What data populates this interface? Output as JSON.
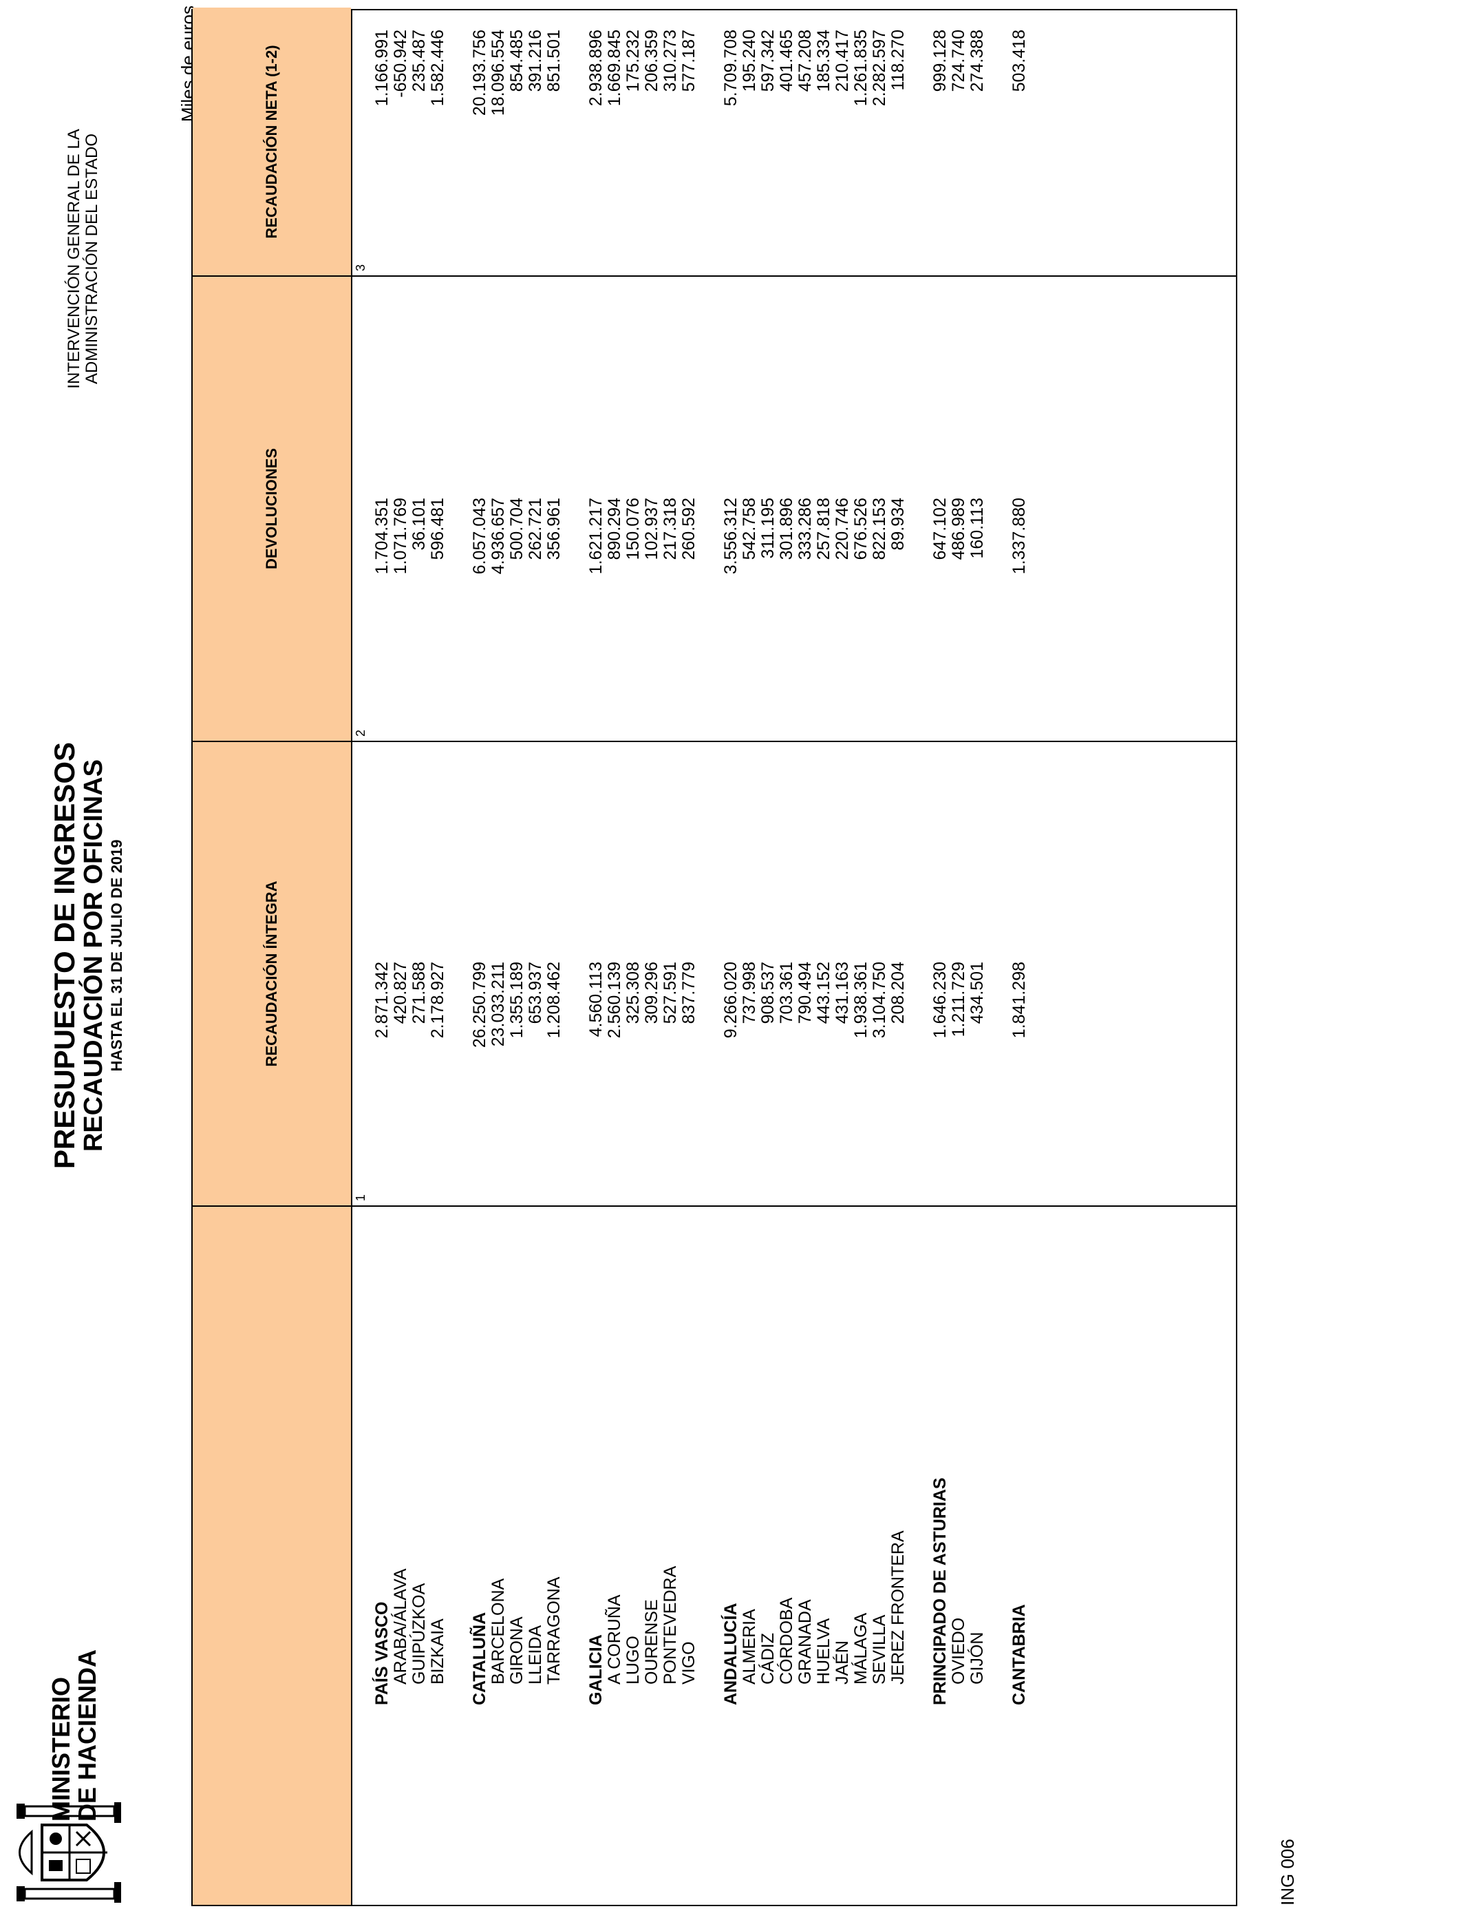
{
  "header": {
    "ministry_line1": "MINISTERIO",
    "ministry_line2": "DE HACIENDA",
    "title": "PRESUPUESTO DE INGRESOS",
    "subtitle": "RECAUDACIÓN POR OFICINAS",
    "date_line": "HASTA EL 31 DE JULIO DE 2019",
    "igae_line1": "INTERVENCIÓN GENERAL DE LA",
    "igae_line2": "ADMINISTRACIÓN DEL ESTADO",
    "units": "Miles de euros"
  },
  "columns": {
    "c0": "",
    "c1": "RECAUDACIÓN ÍNTEGRA",
    "c2": "DEVOLUCIONES",
    "c3": "RECAUDACIÓN NETA (1-2)",
    "n1": "1",
    "n2": "2",
    "n3": "3"
  },
  "rows": [
    {
      "name": "PAÍS VASCO",
      "group": true,
      "v1": "2.871.342",
      "v2": "1.704.351",
      "v3": "1.166.991"
    },
    {
      "name": "ARABA/ÁLAVA",
      "v1": "420.827",
      "v2": "1.071.769",
      "v3": "-650.942"
    },
    {
      "name": "GUIPÚZKOA",
      "v1": "271.588",
      "v2": "36.101",
      "v3": "235.487"
    },
    {
      "name": "BIZKAIA",
      "v1": "2.178.927",
      "v2": "596.481",
      "v3": "1.582.446"
    },
    {
      "name": "CATALUÑA",
      "group": true,
      "v1": "26.250.799",
      "v2": "6.057.043",
      "v3": "20.193.756"
    },
    {
      "name": "BARCELONA",
      "v1": "23.033.211",
      "v2": "4.936.657",
      "v3": "18.096.554"
    },
    {
      "name": "GIRONA",
      "v1": "1.355.189",
      "v2": "500.704",
      "v3": "854.485"
    },
    {
      "name": "LLEIDA",
      "v1": "653.937",
      "v2": "262.721",
      "v3": "391.216"
    },
    {
      "name": "TARRAGONA",
      "v1": "1.208.462",
      "v2": "356.961",
      "v3": "851.501"
    },
    {
      "name": "GALICIA",
      "group": true,
      "v1": "4.560.113",
      "v2": "1.621.217",
      "v3": "2.938.896"
    },
    {
      "name": "A CORUÑA",
      "v1": "2.560.139",
      "v2": "890.294",
      "v3": "1.669.845"
    },
    {
      "name": "LUGO",
      "v1": "325.308",
      "v2": "150.076",
      "v3": "175.232"
    },
    {
      "name": "OURENSE",
      "v1": "309.296",
      "v2": "102.937",
      "v3": "206.359"
    },
    {
      "name": "PONTEVEDRA",
      "v1": "527.591",
      "v2": "217.318",
      "v3": "310.273"
    },
    {
      "name": "VIGO",
      "v1": "837.779",
      "v2": "260.592",
      "v3": "577.187"
    },
    {
      "name": "ANDALUCÍA",
      "group": true,
      "v1": "9.266.020",
      "v2": "3.556.312",
      "v3": "5.709.708"
    },
    {
      "name": "ALMERIA",
      "v1": "737.998",
      "v2": "542.758",
      "v3": "195.240"
    },
    {
      "name": "CÁDIZ",
      "v1": "908.537",
      "v2": "311.195",
      "v3": "597.342"
    },
    {
      "name": "CÓRDOBA",
      "v1": "703.361",
      "v2": "301.896",
      "v3": "401.465"
    },
    {
      "name": "GRANADA",
      "v1": "790.494",
      "v2": "333.286",
      "v3": "457.208"
    },
    {
      "name": "HUELVA",
      "v1": "443.152",
      "v2": "257.818",
      "v3": "185.334"
    },
    {
      "name": "JAÉN",
      "v1": "431.163",
      "v2": "220.746",
      "v3": "210.417"
    },
    {
      "name": "MÁLAGA",
      "v1": "1.938.361",
      "v2": "676.526",
      "v3": "1.261.835"
    },
    {
      "name": "SEVILLA",
      "v1": "3.104.750",
      "v2": "822.153",
      "v3": "2.282.597"
    },
    {
      "name": "JEREZ FRONTERA",
      "v1": "208.204",
      "v2": "89.934",
      "v3": "118.270"
    },
    {
      "name": "PRINCIPADO DE ASTURIAS",
      "group": true,
      "v1": "1.646.230",
      "v2": "647.102",
      "v3": "999.128"
    },
    {
      "name": "OVIEDO",
      "v1": "1.211.729",
      "v2": "486.989",
      "v3": "724.740"
    },
    {
      "name": "GIJÓN",
      "v1": "434.501",
      "v2": "160.113",
      "v3": "274.388"
    },
    {
      "name": "CANTABRIA",
      "group": true,
      "v1": "1.841.298",
      "v2": "1.337.880",
      "v3": "503.418"
    }
  ],
  "footer": {
    "code": "ING 006"
  }
}
